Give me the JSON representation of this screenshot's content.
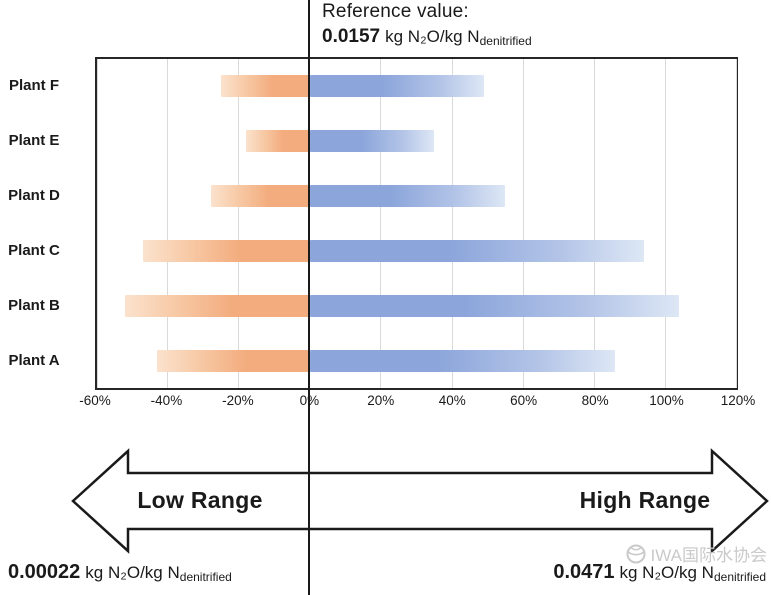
{
  "reference": {
    "label": "Reference value:",
    "value": "0.0157",
    "unit": "kg N₂O/kg N",
    "unit_sub": "denitrified"
  },
  "chart_data": {
    "type": "bar",
    "orientation": "horizontal-diverging",
    "title": "",
    "categories": [
      "Plant F",
      "Plant E",
      "Plant D",
      "Plant C",
      "Plant B",
      "Plant A"
    ],
    "series": [
      {
        "name": "Low Range",
        "color": "#f3ac7e",
        "values": [
          -25,
          -18,
          -28,
          -47,
          -52,
          -43
        ]
      },
      {
        "name": "High Range",
        "color": "#8ca6db",
        "values": [
          49,
          35,
          55,
          94,
          104,
          86
        ]
      }
    ],
    "xlim": [
      -60,
      120
    ],
    "x_ticks": [
      -60,
      -40,
      -20,
      0,
      20,
      40,
      60,
      80,
      100,
      120
    ],
    "x_tick_labels": [
      "-60%",
      "-40%",
      "-20%",
      "0%",
      "20%",
      "40%",
      "60%",
      "80%",
      "100%",
      "120%"
    ],
    "reference_x": 0,
    "grid": true,
    "legend": "none"
  },
  "arrow": {
    "low_label": "Low Range",
    "high_label": "High Range"
  },
  "low_extreme": {
    "value": "0.00022",
    "unit": "kg N₂O/kg N",
    "unit_sub": "denitrified"
  },
  "high_extreme": {
    "value": "0.0471",
    "unit": "kg N₂O/kg N",
    "unit_sub": "denitrified"
  },
  "watermark": {
    "text": "IWA国际水协会"
  },
  "colors": {
    "low_solid": "#f3ac7e",
    "low_light": "#fbe2cd",
    "high_solid": "#8ca6db",
    "high_light": "#dde7f5",
    "gridline": "#d9d9d9",
    "axis": "#262626",
    "reference_line": "#1a1a1a",
    "watermark_grey": "#c4c4c4"
  }
}
